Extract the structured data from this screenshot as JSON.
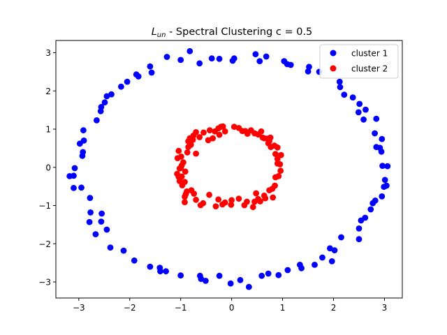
{
  "chart_data": {
    "type": "scatter",
    "title": {
      "symbol_base": "L",
      "symbol_sub": "un",
      "text": " - Spectral Clustering c = 0.5"
    },
    "xlabel": "",
    "ylabel": "",
    "xlim": [
      -3.45,
      3.35
    ],
    "ylim": [
      -3.42,
      3.32
    ],
    "x_ticks": [
      -3,
      -2,
      -1,
      0,
      1,
      2,
      3
    ],
    "y_ticks": [
      -3,
      -2,
      -1,
      0,
      1,
      2,
      3
    ],
    "grid": false,
    "legend_position": "top-right",
    "series": [
      {
        "name": "cluster 1",
        "color": "#0000ff",
        "points": [
          [
            -3.18,
            -0.23
          ],
          [
            -3.1,
            -0.22
          ],
          [
            -3.1,
            -0.54
          ],
          [
            -3.08,
            -0.02
          ],
          [
            -2.95,
            -0.53
          ],
          [
            -2.93,
            0.3
          ],
          [
            -2.92,
            0.4
          ],
          [
            -2.91,
            0.97
          ],
          [
            -2.9,
            0.7
          ],
          [
            -2.98,
            0.62
          ],
          [
            -2.78,
            -0.8
          ],
          [
            -2.77,
            -1.18
          ],
          [
            -2.79,
            -1.43
          ],
          [
            -2.67,
            -1.75
          ],
          [
            -2.55,
            -1.21
          ],
          [
            -2.56,
            -1.42
          ],
          [
            -2.45,
            -1.63
          ],
          [
            -2.65,
            1.23
          ],
          [
            -2.57,
            1.47
          ],
          [
            -2.56,
            1.58
          ],
          [
            -2.49,
            1.7
          ],
          [
            -2.45,
            1.86
          ],
          [
            -2.36,
            1.91
          ],
          [
            -2.38,
            -2.1
          ],
          [
            -2.12,
            -2.18
          ],
          [
            -2.17,
            2.11
          ],
          [
            -2.05,
            2.24
          ],
          [
            -1.91,
            -2.44
          ],
          [
            -1.87,
            2.43
          ],
          [
            -1.83,
            2.38
          ],
          [
            -1.6,
            2.64
          ],
          [
            -1.57,
            2.48
          ],
          [
            -1.6,
            -2.6
          ],
          [
            -1.41,
            -2.63
          ],
          [
            -1.4,
            -2.72
          ],
          [
            -1.29,
            -2.72
          ],
          [
            -1.27,
            2.89
          ],
          [
            -1.0,
            -2.83
          ],
          [
            -1.0,
            2.81
          ],
          [
            -0.82,
            3.04
          ],
          [
            -0.63,
            2.72
          ],
          [
            -0.62,
            -2.84
          ],
          [
            -0.6,
            -2.92
          ],
          [
            -0.51,
            -2.97
          ],
          [
            -0.39,
            2.85
          ],
          [
            -0.24,
            2.84
          ],
          [
            -0.24,
            -2.84
          ],
          [
            -0.02,
            -3.04
          ],
          [
            0.02,
            2.79
          ],
          [
            0.05,
            2.85
          ],
          [
            0.17,
            -2.95
          ],
          [
            0.34,
            -3.13
          ],
          [
            0.47,
            2.96
          ],
          [
            0.55,
            2.78
          ],
          [
            0.59,
            -2.84
          ],
          [
            0.68,
            2.9
          ],
          [
            0.72,
            -2.78
          ],
          [
            0.92,
            -2.82
          ],
          [
            1.03,
            2.78
          ],
          [
            1.09,
            2.7
          ],
          [
            1.1,
            -2.69
          ],
          [
            1.16,
            2.68
          ],
          [
            1.34,
            -2.55
          ],
          [
            1.37,
            -2.64
          ],
          [
            1.5,
            2.51
          ],
          [
            1.52,
            2.63
          ],
          [
            1.63,
            -2.55
          ],
          [
            1.72,
            2.5
          ],
          [
            1.78,
            -2.36
          ],
          [
            1.93,
            -2.12
          ],
          [
            1.97,
            -2.46
          ],
          [
            2.02,
            -2.17
          ],
          [
            2.12,
            2.24
          ],
          [
            2.13,
            2.1
          ],
          [
            2.15,
            -1.83
          ],
          [
            2.21,
            1.9
          ],
          [
            2.38,
            1.83
          ],
          [
            2.49,
            1.44
          ],
          [
            2.51,
            1.66
          ],
          [
            2.5,
            -1.6
          ],
          [
            2.5,
            -1.88
          ],
          [
            2.54,
            -1.39
          ],
          [
            2.59,
            1.25
          ],
          [
            2.62,
            -1.32
          ],
          [
            2.63,
            1.51
          ],
          [
            2.73,
            -1.1
          ],
          [
            2.77,
            -0.94
          ],
          [
            2.82,
            -0.87
          ],
          [
            2.81,
            0.89
          ],
          [
            2.84,
            1.27
          ],
          [
            2.84,
            0.53
          ],
          [
            2.91,
            0.51
          ],
          [
            2.95,
            -0.76
          ],
          [
            2.95,
            0.74
          ],
          [
            2.96,
            0.04
          ],
          [
            2.99,
            -0.51
          ],
          [
            3.01,
            -0.33
          ],
          [
            3.04,
            -0.48
          ],
          [
            3.06,
            0.03
          ],
          [
            2.94,
            0.41
          ]
        ]
      },
      {
        "name": "cluster 2",
        "color": "#ff0000",
        "points": [
          [
            -1.04,
            0.43
          ],
          [
            -1.06,
            0.24
          ],
          [
            -0.99,
            0.28
          ],
          [
            -0.98,
            0.05
          ],
          [
            -1.02,
            -0.03
          ],
          [
            -0.98,
            -0.24
          ],
          [
            -0.92,
            -0.38
          ],
          [
            -0.95,
            0.13
          ],
          [
            -1.04,
            -0.25
          ],
          [
            -0.91,
            -0.11
          ],
          [
            -0.87,
            0.39
          ],
          [
            -0.85,
            0.53
          ],
          [
            -0.85,
            0.68
          ],
          [
            -0.82,
            0.76
          ],
          [
            -0.8,
            0.59
          ],
          [
            -0.76,
            0.72
          ],
          [
            -0.75,
            0.83
          ],
          [
            -0.7,
            0.92
          ],
          [
            -0.7,
            0.36
          ],
          [
            -0.63,
            0.79
          ],
          [
            -0.55,
            0.91
          ],
          [
            -0.46,
            0.71
          ],
          [
            -0.43,
            0.97
          ],
          [
            -0.37,
            0.76
          ],
          [
            -0.33,
            0.94
          ],
          [
            -0.26,
            1.02
          ],
          [
            -0.21,
            1.06
          ],
          [
            -0.17,
            1.07
          ],
          [
            -0.24,
            0.85
          ],
          [
            -0.13,
            0.94
          ],
          [
            0.05,
            1.06
          ],
          [
            0.14,
            1.03
          ],
          [
            0.21,
            0.95
          ],
          [
            0.27,
            0.95
          ],
          [
            0.31,
            0.88
          ],
          [
            0.38,
            0.97
          ],
          [
            0.45,
            0.89
          ],
          [
            0.52,
            0.86
          ],
          [
            0.58,
            0.94
          ],
          [
            0.61,
            0.78
          ],
          [
            0.64,
            0.76
          ],
          [
            0.7,
            0.75
          ],
          [
            0.72,
            0.63
          ],
          [
            0.74,
            0.69
          ],
          [
            0.76,
            0.78
          ],
          [
            0.77,
            0.53
          ],
          [
            0.84,
            0.57
          ],
          [
            0.86,
            0.35
          ],
          [
            0.9,
            0.52
          ],
          [
            0.97,
            0.32
          ],
          [
            0.9,
            0.22
          ],
          [
            0.9,
            0.1
          ],
          [
            0.95,
            0.08
          ],
          [
            0.96,
            -0.09
          ],
          [
            0.92,
            -0.23
          ],
          [
            0.85,
            -0.48
          ],
          [
            0.8,
            -0.56
          ],
          [
            0.86,
            -0.26
          ],
          [
            0.74,
            -0.6
          ],
          [
            0.81,
            -0.79
          ],
          [
            0.64,
            -0.74
          ],
          [
            0.66,
            -0.81
          ],
          [
            0.56,
            -0.89
          ],
          [
            0.52,
            -0.83
          ],
          [
            0.48,
            -0.68
          ],
          [
            0.45,
            -0.9
          ],
          [
            0.42,
            -1.04
          ],
          [
            0.3,
            -0.9
          ],
          [
            0.25,
            -0.99
          ],
          [
            0.14,
            -0.82
          ],
          [
            0.0,
            -0.86
          ],
          [
            -0.01,
            -0.98
          ],
          [
            -0.13,
            -0.92
          ],
          [
            -0.18,
            -0.97
          ],
          [
            -0.26,
            -0.84
          ],
          [
            -0.31,
            -1.02
          ],
          [
            -0.44,
            -0.72
          ],
          [
            -0.56,
            -0.94
          ],
          [
            -0.61,
            -0.99
          ],
          [
            -0.7,
            -0.85
          ],
          [
            -0.74,
            -0.69
          ],
          [
            -0.79,
            -0.6
          ],
          [
            -0.88,
            -0.63
          ],
          [
            -0.9,
            -0.7
          ],
          [
            -0.92,
            -0.91
          ],
          [
            -0.92,
            -0.77
          ],
          [
            -0.97,
            -0.47
          ],
          [
            -1.02,
            -0.36
          ],
          [
            -1.07,
            -0.17
          ],
          [
            -1.0,
            -0.02
          ]
        ]
      }
    ]
  }
}
